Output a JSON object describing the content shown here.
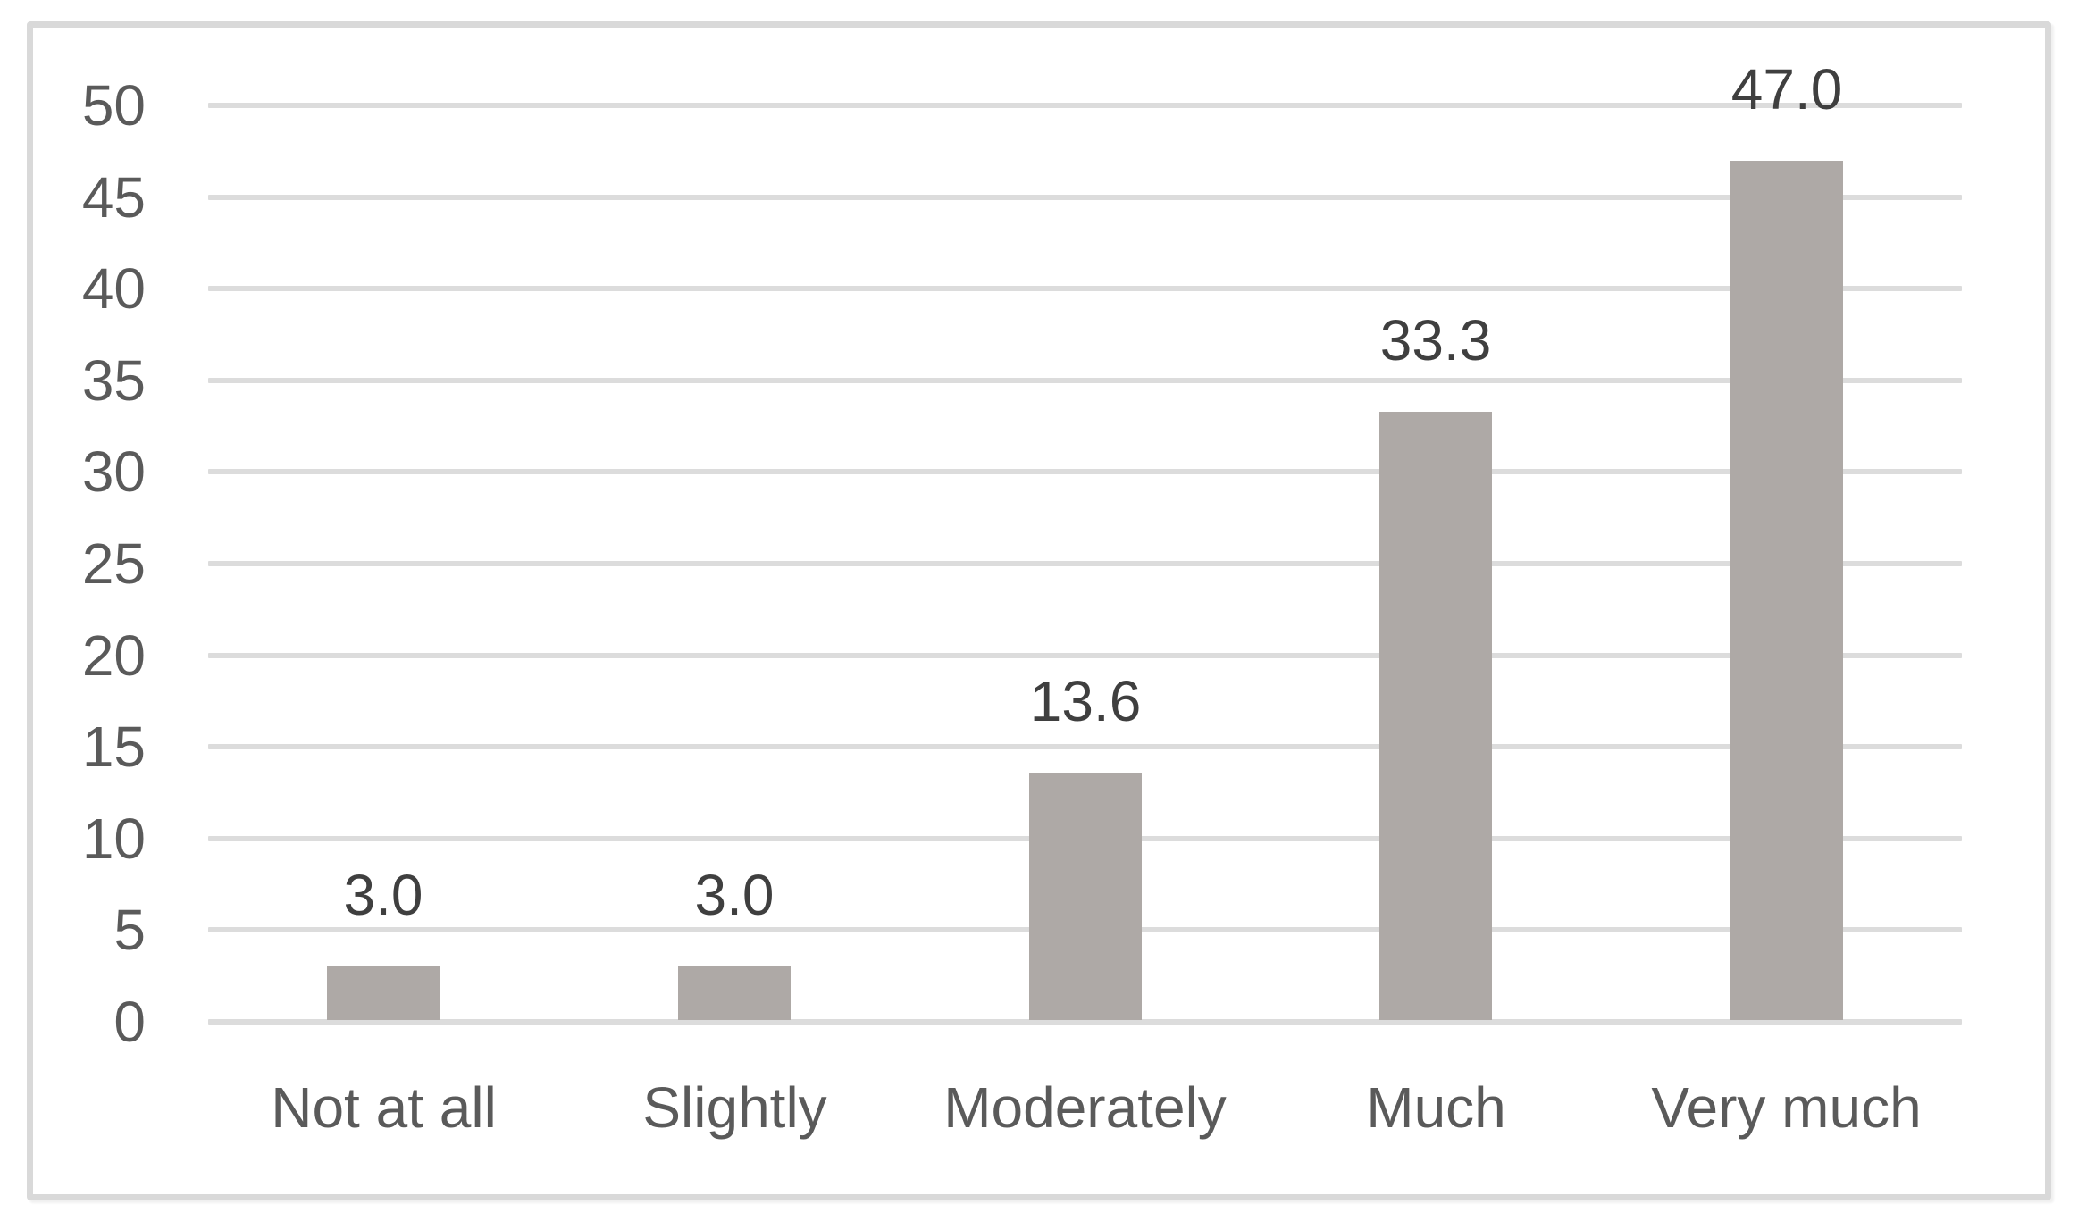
{
  "figure": {
    "background": "#ffffff",
    "frame_border_color": "#d9d9d9"
  },
  "chart_data": {
    "type": "bar",
    "title": "",
    "xlabel": "",
    "ylabel": "",
    "categories": [
      "Not at all",
      "Slightly",
      "Moderately",
      "Much",
      "Very much"
    ],
    "values": [
      3.0,
      3.0,
      13.6,
      33.3,
      47.0
    ],
    "data_labels": [
      "3.0",
      "3.0",
      "13.6",
      "33.3",
      "47.0"
    ],
    "ylim": [
      0,
      50
    ],
    "ytick_step": 5,
    "yticks": [
      0,
      5,
      10,
      15,
      20,
      25,
      30,
      35,
      40,
      45,
      50
    ],
    "ytick_labels": [
      "0",
      "5",
      "10",
      "15",
      "20",
      "25",
      "30",
      "35",
      "40",
      "45",
      "50"
    ],
    "grid": "horizontal",
    "legend": "none",
    "bar_color": "#aea9a6",
    "gridline_color": "#dcdcdc",
    "axis_label_color": "#5a5a5a",
    "data_label_color": "#3f3f3f"
  }
}
